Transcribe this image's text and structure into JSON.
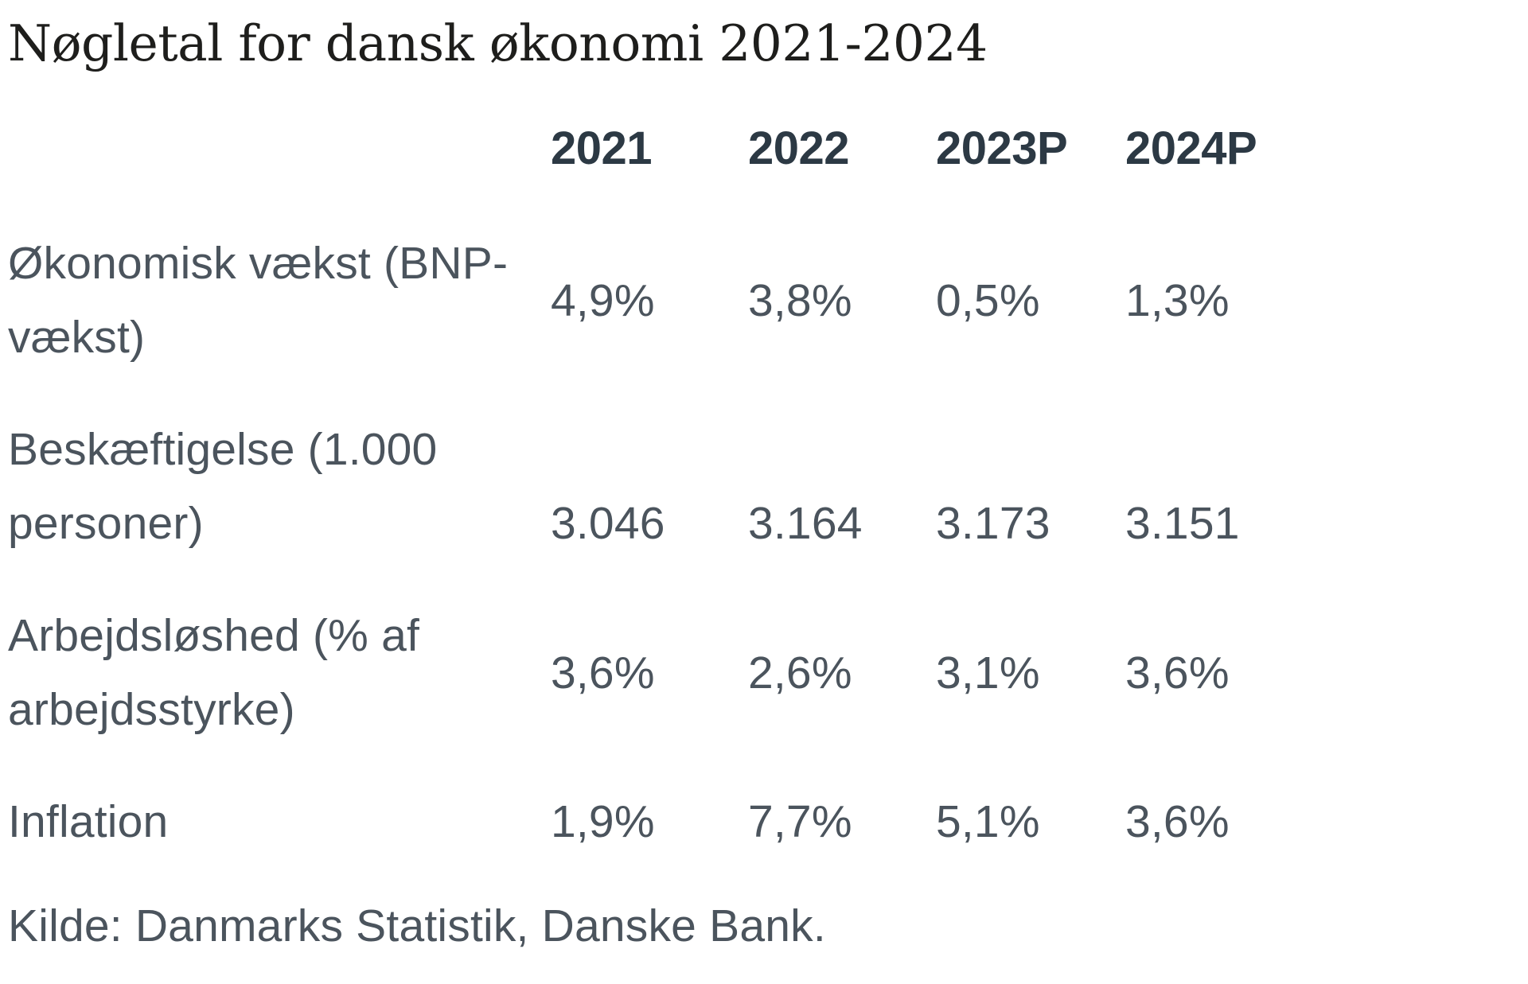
{
  "title": "Nøgletal for dansk økonomi 2021-2024",
  "table": {
    "columns": [
      "2021",
      "2022",
      "2023P",
      "2024P"
    ],
    "rows": [
      {
        "label": "Økonomisk vækst (BNP-vækst)",
        "label_lines": [
          "Økonomisk vækst (BNP-",
          "vækst)"
        ],
        "values": [
          "4,9%",
          "3,8%",
          "0,5%",
          "1,3%"
        ]
      },
      {
        "label": "Beskæftigelse (1.000 personer)",
        "label_lines": [
          "Beskæftigelse (1.000",
          "personer)"
        ],
        "values": [
          "3.046",
          "3.164",
          "3.173",
          "3.151"
        ]
      },
      {
        "label": "Arbejdsløshed (% af arbejdsstyrke)",
        "label_lines": [
          "Arbejdsløshed (% af",
          "arbejdsstyrke)"
        ],
        "values": [
          "3,6%",
          "2,6%",
          "3,1%",
          "3,6%"
        ]
      },
      {
        "label": "Inflation",
        "label_lines": [
          "Inflation"
        ],
        "values": [
          "1,9%",
          "7,7%",
          "5,1%",
          "3,6%"
        ]
      }
    ],
    "source": "Kilde: Danmarks Statistik, Danske Bank."
  },
  "colors": {
    "background": "#ffffff",
    "title_text": "#1e1e1c",
    "header_text": "#2c3944",
    "body_text": "#4b545d"
  },
  "chart_data": {
    "type": "table",
    "title": "Nøgletal for dansk økonomi 2021-2024",
    "columns": [
      "",
      "2021",
      "2022",
      "2023P",
      "2024P"
    ],
    "rows": [
      [
        "Økonomisk vækst (BNP-vækst)",
        "4,9%",
        "3,8%",
        "0,5%",
        "1,3%"
      ],
      [
        "Beskæftigelse (1.000 personer)",
        "3.046",
        "3.164",
        "3.173",
        "3.151"
      ],
      [
        "Arbejdsløshed (% af arbejdsstyrke)",
        "3,6%",
        "2,6%",
        "3,1%",
        "3,6%"
      ],
      [
        "Inflation",
        "1,9%",
        "7,7%",
        "5,1%",
        "3,6%"
      ]
    ],
    "source": "Kilde: Danmarks Statistik, Danske Bank."
  }
}
